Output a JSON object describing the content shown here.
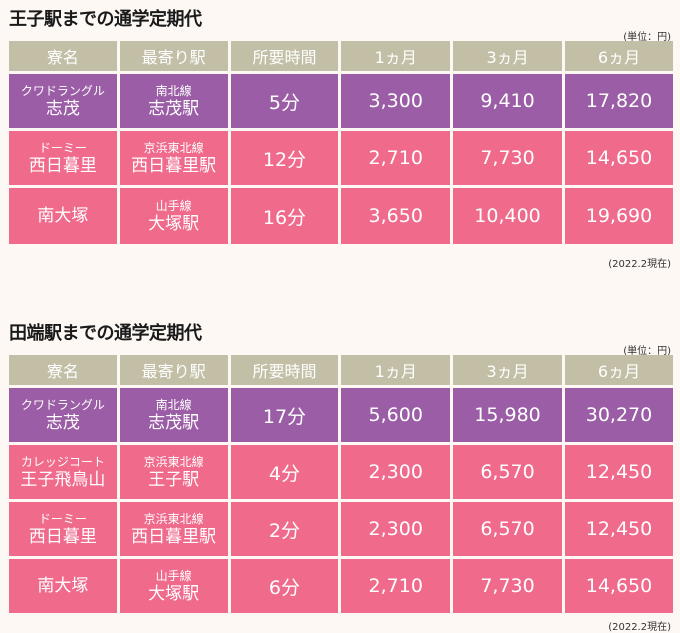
{
  "sections": [
    {
      "title": "王子駅までの通学定期代",
      "unit": "(単位：円)",
      "headers": [
        "寮名",
        "最寄り駅",
        "所要時間",
        "1ヵ月",
        "3ヵ月",
        "6ヵ月"
      ],
      "rows": [
        {
          "dorm_sub": "クワドラングル",
          "dorm": "志茂",
          "line": "南北線",
          "station": "志茂駅",
          "time": "5分",
          "m1": "3,300",
          "m3": "9,410",
          "m6": "17,820",
          "color": "#9b5ea6"
        },
        {
          "dorm_sub": "ドーミー",
          "dorm": "西日暮里",
          "line": "京浜東北線",
          "station": "西日暮里駅",
          "time": "12分",
          "m1": "2,710",
          "m3": "7,730",
          "m6": "14,650",
          "color": "#ef6a8b"
        },
        {
          "dorm_sub": "",
          "dorm": "南大塚",
          "line": "山手線",
          "station": "大塚駅",
          "time": "16分",
          "m1": "3,650",
          "m3": "10,400",
          "m6": "19,690",
          "color": "#ef6a8b"
        }
      ],
      "note": "(2022.2現在)"
    },
    {
      "title": "田端駅までの通学定期代",
      "unit": "(単位：円)",
      "headers": [
        "寮名",
        "最寄り駅",
        "所要時間",
        "1ヵ月",
        "3ヵ月",
        "6ヵ月"
      ],
      "rows": [
        {
          "dorm_sub": "クワドラングル",
          "dorm": "志茂",
          "line": "南北線",
          "station": "志茂駅",
          "time": "17分",
          "m1": "5,600",
          "m3": "15,980",
          "m6": "30,270",
          "color": "#9b5ea6"
        },
        {
          "dorm_sub": "カレッジコート",
          "dorm": "王子飛鳥山",
          "line": "京浜東北線",
          "station": "王子駅",
          "time": "4分",
          "m1": "2,300",
          "m3": "6,570",
          "m6": "12,450",
          "color": "#ef6a8b"
        },
        {
          "dorm_sub": "ドーミー",
          "dorm": "西日暮里",
          "line": "京浜東北線",
          "station": "西日暮里駅",
          "time": "2分",
          "m1": "2,300",
          "m3": "6,570",
          "m6": "12,450",
          "color": "#ef6a8b"
        },
        {
          "dorm_sub": "",
          "dorm": "南大塚",
          "line": "山手線",
          "station": "大塚駅",
          "time": "6分",
          "m1": "2,710",
          "m3": "7,730",
          "m6": "14,650",
          "color": "#ef6a8b"
        }
      ],
      "note": "(2022.2現在)"
    }
  ]
}
